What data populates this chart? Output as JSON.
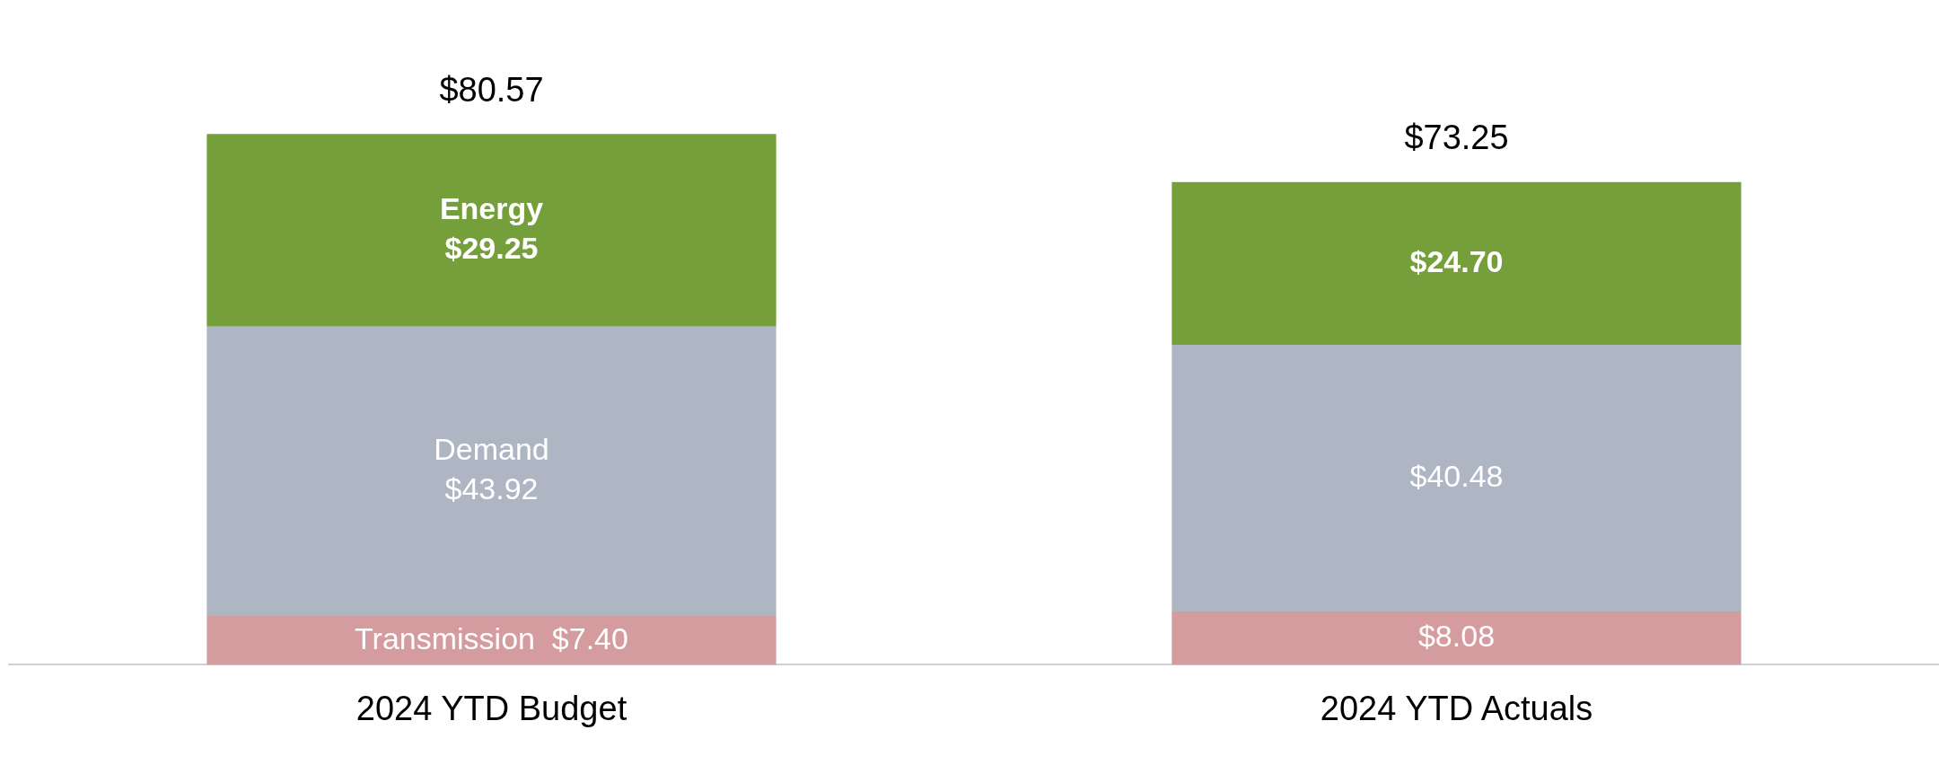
{
  "chart_data": {
    "type": "bar",
    "stacked": true,
    "legend": false,
    "grid": false,
    "categories": [
      "2024 YTD Budget",
      "2024 YTD Actuals"
    ],
    "series": [
      {
        "name": "Transmission",
        "color": "#d49c9e",
        "values": [
          7.4,
          8.08
        ],
        "value_labels": [
          "$7.40",
          "$8.08"
        ]
      },
      {
        "name": "Demand",
        "color": "#adb6c2",
        "values": [
          43.92,
          40.48
        ],
        "value_labels": [
          "$43.92",
          "$40.48"
        ]
      },
      {
        "name": "Energy",
        "color": "#759f3b",
        "values": [
          29.25,
          24.7
        ],
        "value_labels": [
          "$29.25",
          "$24.70"
        ]
      }
    ],
    "totals": [
      "$80.57",
      "$73.25"
    ]
  }
}
